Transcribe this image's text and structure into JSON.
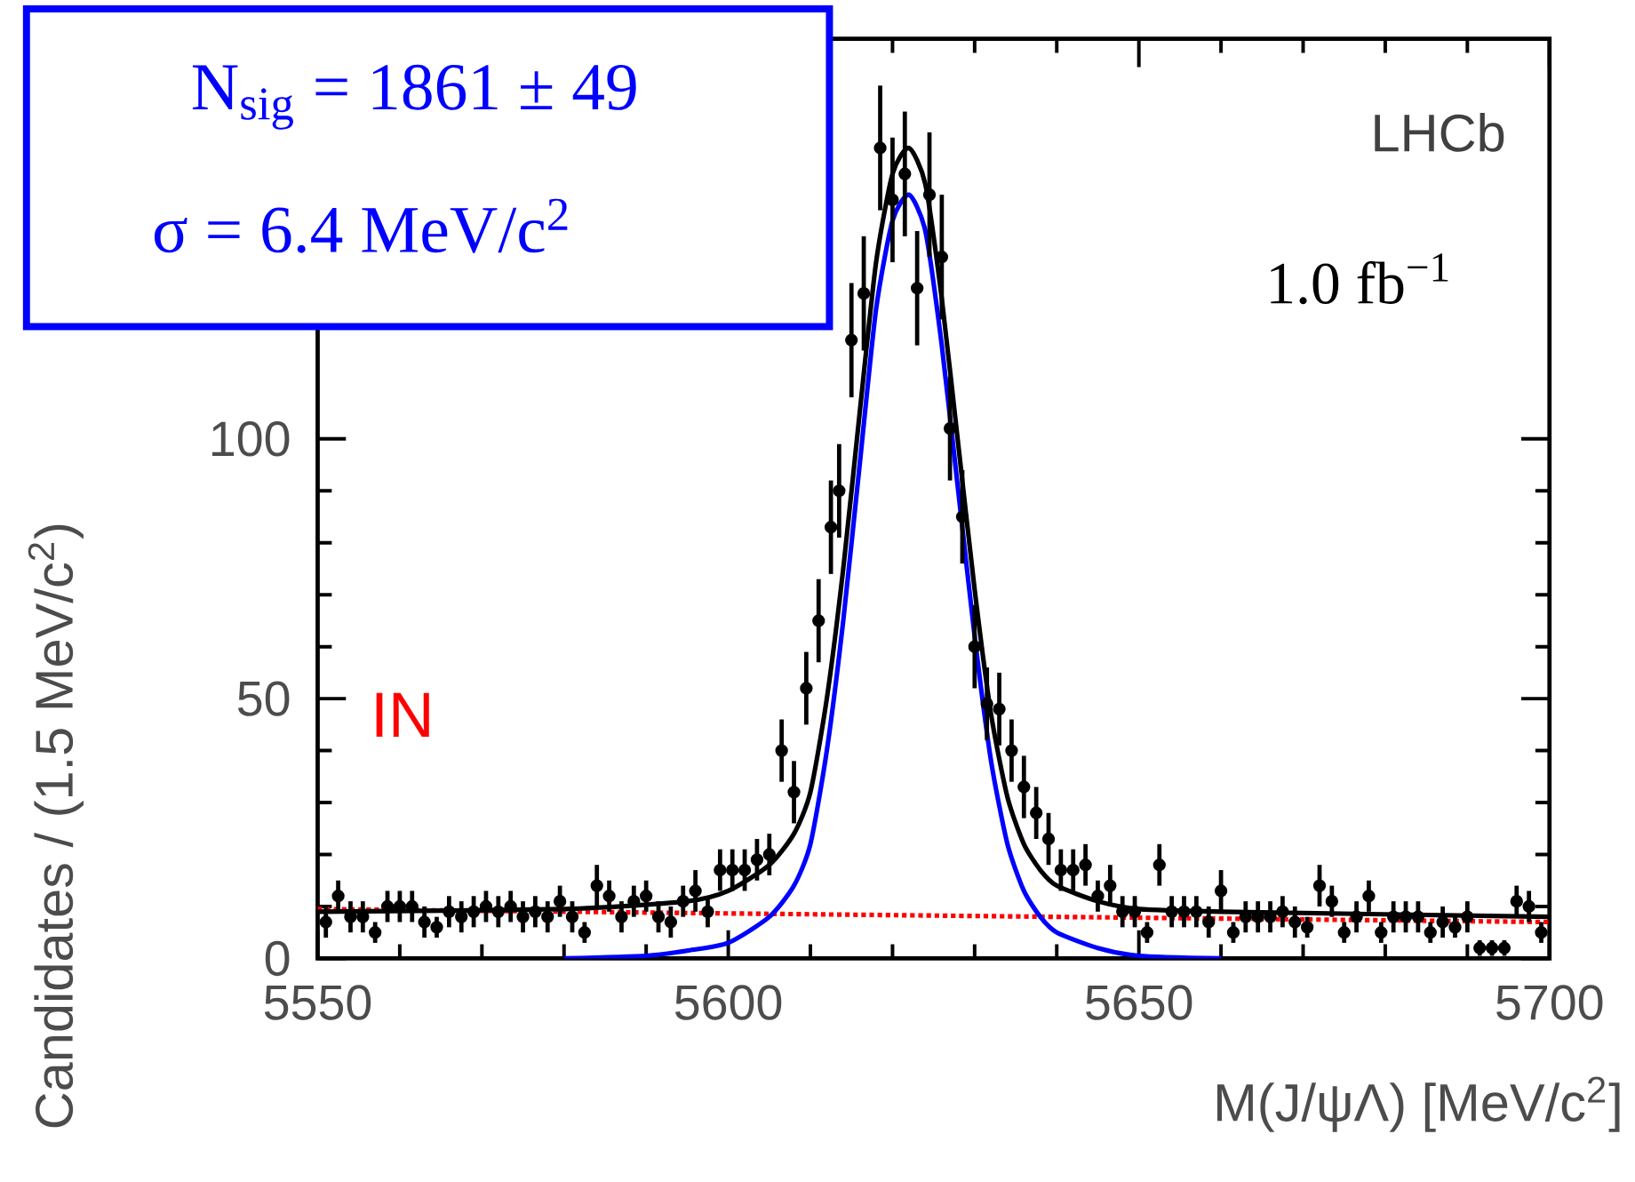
{
  "chart_data": {
    "type": "scatter",
    "xlabel": "M(J/ψΛ) [MeV/c$^{2}$]",
    "ylabel": "Candidates / (1.5 MeV/c$^{2}$)",
    "xlim": [
      5550,
      5700
    ],
    "xticks": [
      5550,
      5600,
      5650,
      5700
    ],
    "ylim": [
      0,
      177
    ],
    "yticks": [
      0,
      50,
      100
    ],
    "annotations": [
      "N$_{sig}$ = 1861 ± 49",
      "σ = 6.4 MeV/c$^{2}$",
      "LHCb",
      "1.0 fb$^{−1}$",
      "IN"
    ],
    "series": [
      {
        "type": "line",
        "color": "#ff0000",
        "line_style": "dotted",
        "marker": "none",
        "x": [
          5550,
          5700
        ],
        "values": [
          9.5,
          7
        ]
      },
      {
        "type": "line",
        "color": "#0000ff",
        "line_style": "solid",
        "marker": "none",
        "x": [
          5580,
          5590,
          5595,
          5600,
          5605,
          5608,
          5610,
          5612,
          5614,
          5616,
          5618,
          5620,
          5622,
          5624,
          5626,
          5628,
          5630,
          5632,
          5634,
          5636,
          5638,
          5640,
          5645,
          5650,
          5660
        ],
        "values": [
          0,
          0.5,
          1.5,
          3,
          8,
          14,
          22,
          40,
          65,
          95,
          125,
          142,
          147,
          140,
          118,
          90,
          62,
          38,
          22,
          13,
          8,
          5,
          2,
          0.5,
          0
        ]
      },
      {
        "type": "line",
        "color": "#000000",
        "line_style": "solid",
        "marker": "none",
        "x": [
          5550,
          5580,
          5595,
          5600,
          5605,
          5608,
          5610,
          5612,
          5614,
          5616,
          5618,
          5620,
          5622,
          5624,
          5626,
          5628,
          5630,
          5632,
          5634,
          5636,
          5638,
          5640,
          5645,
          5650,
          5660,
          5700
        ],
        "values": [
          9,
          9.5,
          11,
          13,
          18,
          24,
          32,
          50,
          75,
          105,
          134,
          151,
          156,
          149,
          127,
          99,
          71,
          47,
          31,
          22,
          17,
          14,
          11,
          9.5,
          9,
          8
        ]
      },
      {
        "color": "#000000",
        "marker": "circle",
        "x": [
          5551,
          5552.5,
          5554,
          5555.5,
          5557,
          5558.5,
          5560,
          5561.5,
          5563,
          5564.5,
          5566,
          5567.5,
          5569,
          5570.5,
          5572,
          5573.5,
          5575,
          5576.5,
          5578,
          5579.5,
          5581,
          5582.5,
          5584,
          5585.5,
          5587,
          5588.5,
          5590,
          5591.5,
          5593,
          5594.5,
          5596,
          5597.5,
          5599,
          5600.5,
          5602,
          5603.5,
          5605,
          5606.5,
          5608,
          5609.5,
          5611,
          5612.5,
          5613.5,
          5615,
          5616.5,
          5618.5,
          5620,
          5621.5,
          5623,
          5624.5,
          5626,
          5627,
          5628.5,
          5630,
          5631.5,
          5633,
          5634.5,
          5636,
          5637.5,
          5639,
          5640.5,
          5642,
          5643.5,
          5645,
          5646.5,
          5648,
          5649.5,
          5651,
          5652.5,
          5654,
          5655.5,
          5657,
          5658.5,
          5660,
          5661.5,
          5663,
          5664.5,
          5666,
          5667.5,
          5669,
          5670.5,
          5672,
          5673.5,
          5675,
          5676.5,
          5678,
          5679.5,
          5681,
          5682.5,
          5684,
          5685.5,
          5687,
          5688.5,
          5690,
          5691.5,
          5693,
          5694.5,
          5696,
          5697.5,
          5699
        ],
        "values": [
          7,
          12,
          8,
          8,
          5,
          10,
          10,
          10,
          7,
          6,
          9,
          8,
          9,
          10,
          9,
          10,
          8,
          9,
          8,
          11,
          8,
          5,
          14,
          12,
          8,
          11,
          12,
          8,
          7,
          11,
          13,
          9,
          17,
          17,
          17,
          19,
          20,
          40,
          32,
          52,
          65,
          83,
          90,
          119,
          128,
          156,
          146,
          151,
          129,
          147,
          135,
          102,
          85,
          60,
          49,
          48,
          40,
          33,
          28,
          23,
          17,
          17,
          18,
          12,
          14,
          9,
          9,
          5,
          18,
          9,
          9,
          9,
          7,
          13,
          5,
          8,
          8,
          8,
          9,
          7,
          6,
          14,
          11,
          5,
          8,
          12,
          5,
          8,
          8,
          8,
          5,
          7,
          6,
          8,
          2,
          2,
          2,
          11,
          10,
          5
        ],
        "errors": [
          3,
          3,
          3,
          3,
          2,
          3,
          3,
          3,
          3,
          2,
          3,
          3,
          3,
          3,
          3,
          3,
          3,
          3,
          3,
          3,
          3,
          2,
          4,
          3,
          3,
          3,
          3,
          3,
          3,
          3,
          4,
          3,
          4,
          4,
          4,
          4,
          4,
          6,
          6,
          7,
          8,
          9,
          9,
          11,
          11,
          12,
          12,
          12,
          11,
          12,
          12,
          10,
          9,
          8,
          7,
          7,
          6,
          6,
          5,
          5,
          4,
          4,
          4,
          3,
          4,
          3,
          3,
          2,
          4,
          3,
          3,
          3,
          3,
          4,
          2,
          3,
          3,
          3,
          3,
          3,
          2,
          4,
          3,
          2,
          3,
          3,
          2,
          3,
          3,
          3,
          2,
          3,
          2,
          3,
          1.5,
          1.5,
          1.5,
          3,
          3,
          2
        ]
      }
    ]
  }
}
